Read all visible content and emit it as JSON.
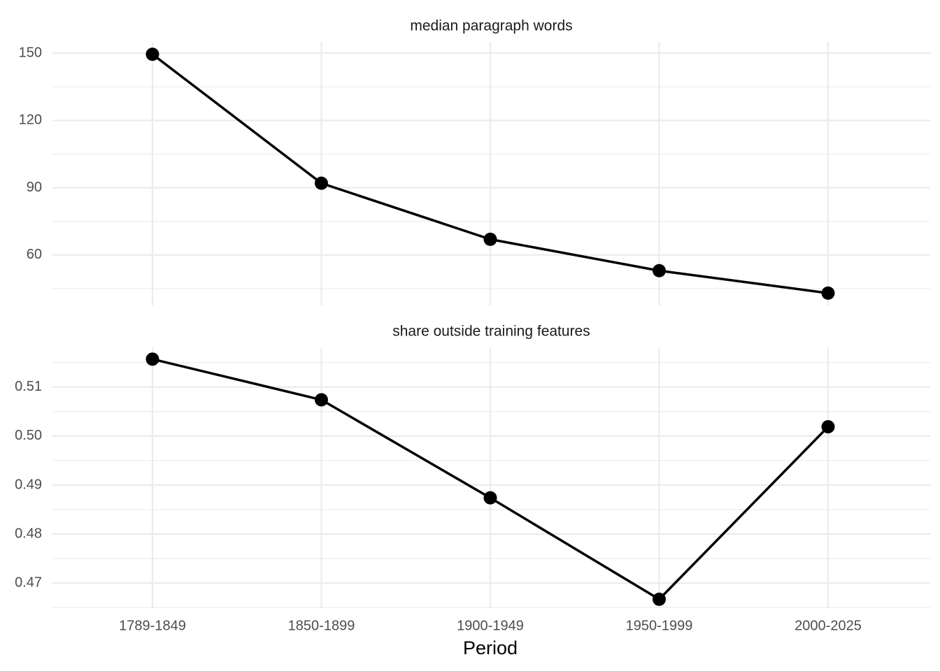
{
  "chart_data": {
    "type": "line",
    "x_label": "Period",
    "color": "#000000",
    "grid": true,
    "categories": [
      "1789-1849",
      "1850-1899",
      "1900-1949",
      "1950-1999",
      "2000-2025"
    ],
    "panels": [
      {
        "title": "median paragraph words",
        "values": [
          149.5,
          92,
          67,
          53,
          43
        ],
        "ylim": [
          37.5,
          155
        ],
        "yticks": [
          60,
          90,
          120,
          150
        ],
        "minor_yticks": [
          45,
          75,
          105,
          135
        ]
      },
      {
        "title": "share outside training features",
        "values": [
          0.5157,
          0.5074,
          0.4874,
          0.4667,
          0.5019
        ],
        "ylim": [
          0.4649,
          0.5181
        ],
        "yticks": [
          0.47,
          0.48,
          0.49,
          {
            "value": 0.5,
            "label": "0.50"
          },
          0.51
        ],
        "minor_yticks": [
          0.465,
          0.475,
          0.485,
          0.495,
          0.505,
          0.515
        ]
      }
    ]
  }
}
